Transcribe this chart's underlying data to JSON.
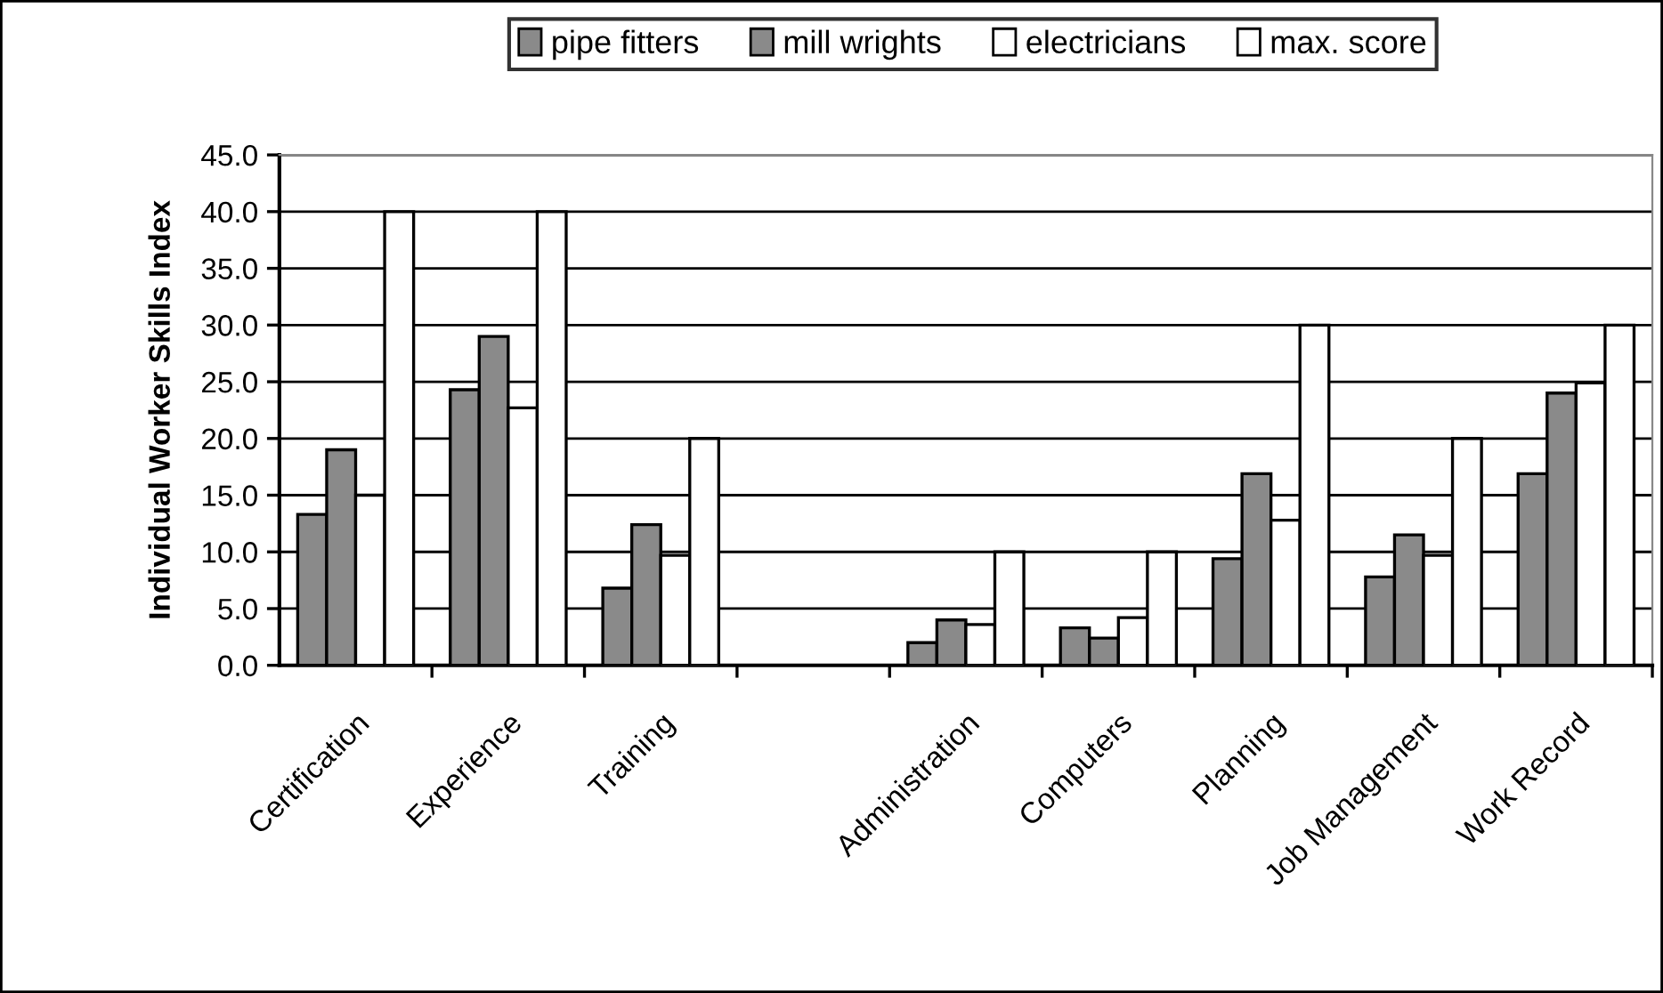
{
  "chart_data": {
    "type": "bar",
    "ylabel": "Individual Worker Skills Index",
    "categories": [
      "Certification",
      "Experience",
      "Training",
      null,
      "Administration",
      "Computers",
      "Planning",
      "Job Management",
      "Work Record"
    ],
    "series": [
      {
        "name": "pipe fitters",
        "color": "#8a8a8a",
        "values": [
          13.3,
          24.3,
          6.8,
          null,
          2.0,
          3.3,
          9.4,
          7.8,
          16.9
        ]
      },
      {
        "name": "mill wrights",
        "color": "#8a8a8a",
        "values": [
          19.0,
          29.0,
          12.4,
          null,
          4.0,
          2.4,
          16.9,
          11.5,
          24.0
        ]
      },
      {
        "name": "electricians",
        "color": "#ffffff",
        "values": [
          15.0,
          22.7,
          9.7,
          null,
          3.6,
          4.2,
          12.8,
          9.7,
          24.9
        ]
      },
      {
        "name": "max. score",
        "color": "#ffffff",
        "values": [
          40,
          40,
          20,
          null,
          10,
          10,
          30,
          20,
          30
        ]
      }
    ],
    "ylim": [
      0,
      45
    ],
    "yticks": [
      {
        "value": 0,
        "label": "0.0"
      },
      {
        "value": 5,
        "label": "5.0"
      },
      {
        "value": 10,
        "label": "10.0"
      },
      {
        "value": 15,
        "label": "15.0"
      },
      {
        "value": 20,
        "label": "20.0"
      },
      {
        "value": 25,
        "label": "25.0"
      },
      {
        "value": 30,
        "label": "30.0"
      },
      {
        "value": 35,
        "label": "35.0"
      },
      {
        "value": 40,
        "label": "40.0"
      },
      {
        "value": 45,
        "label": "45.0"
      }
    ],
    "grid": "y",
    "legend": "top"
  }
}
